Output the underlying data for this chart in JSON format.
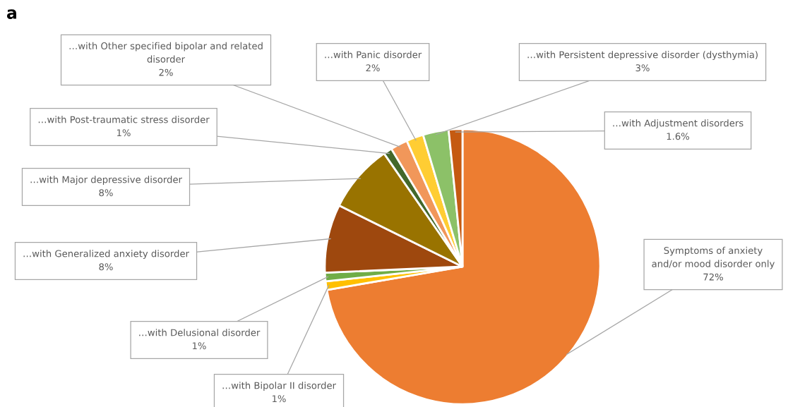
{
  "chart_data": {
    "type": "pie",
    "title": "a",
    "categories": [
      "Symptoms of anxiety\nand/or mood disorder only",
      "…with Bipolar II disorder",
      "…with Delusional disorder",
      "…with Generalized anxiety disorder",
      "…with Major depressive disorder",
      "…with Post-traumatic stress disorder",
      "…with Other specified bipolar and related\ndisorder",
      "…with Panic disorder",
      "…with Persistent depressive disorder (dysthymia)",
      "…with Adjustment disorders"
    ],
    "values": [
      72,
      1,
      1,
      8,
      8,
      1,
      2,
      2,
      3,
      1.6
    ],
    "value_labels": [
      "72%",
      "1%",
      "1%",
      "8%",
      "8%",
      "1%",
      "2%",
      "2%",
      "3%",
      "1.6%"
    ],
    "colors": [
      "#ed7d31",
      "#ffc000",
      "#70ad47",
      "#9e480e",
      "#997300",
      "#43682b",
      "#f1975a",
      "#ffcd33",
      "#8cc168",
      "#c55a11"
    ],
    "legend": false
  }
}
